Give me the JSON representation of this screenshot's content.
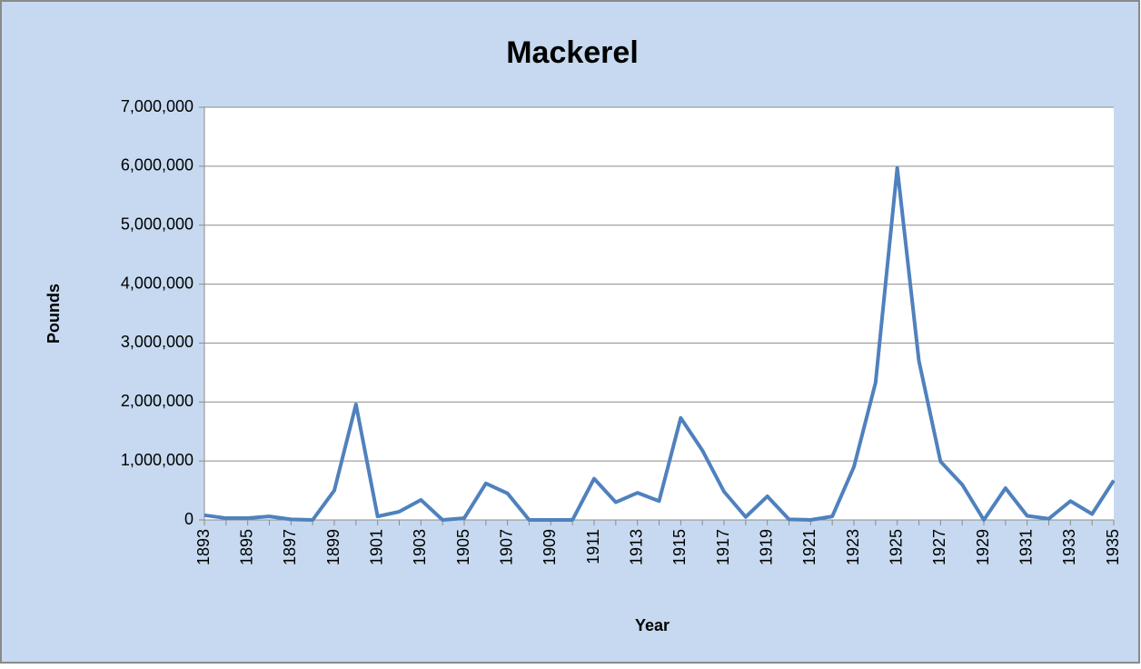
{
  "chart_data": {
    "type": "line",
    "title": "Mackerel",
    "x_label": "Year",
    "y_label": "Pounds",
    "categories": [
      "1893",
      null,
      "1895",
      null,
      "1897",
      null,
      "1899",
      null,
      "1901",
      null,
      "1903",
      null,
      "1905",
      null,
      "1907",
      null,
      "1909",
      null,
      "1911",
      null,
      "1913",
      null,
      "1915",
      null,
      "1917",
      null,
      "1919",
      null,
      "1921",
      null,
      "1923",
      null,
      "1925",
      null,
      "1927",
      null,
      "1929",
      null,
      "1931",
      null,
      "1933",
      null,
      "1935"
    ],
    "values": [
      80000,
      30000,
      30000,
      60000,
      10000,
      0,
      500000,
      1960000,
      60000,
      140000,
      340000,
      0,
      30000,
      620000,
      450000,
      0,
      0,
      0,
      700000,
      300000,
      460000,
      320000,
      1730000,
      1180000,
      480000,
      50000,
      400000,
      10000,
      0,
      60000,
      900000,
      2330000,
      5970000,
      2700000,
      990000,
      600000,
      0,
      540000,
      70000,
      20000,
      320000,
      100000,
      670000
    ],
    "color": "#4f81bd",
    "ylim": [
      0,
      7000000
    ],
    "yticks": [
      0,
      {
        "value": 1000000,
        "label": "1,000,000"
      },
      {
        "value": 2000000,
        "label": "2,000,000"
      },
      {
        "value": 3000000,
        "label": "3,000,000"
      },
      {
        "value": 4000000,
        "label": "4,000,000"
      },
      {
        "value": 5000000,
        "label": "5,000,000"
      },
      {
        "value": 6000000,
        "label": "6,000,000"
      },
      {
        "value": 7000000,
        "label": "7,000,000"
      }
    ],
    "grid": true
  }
}
